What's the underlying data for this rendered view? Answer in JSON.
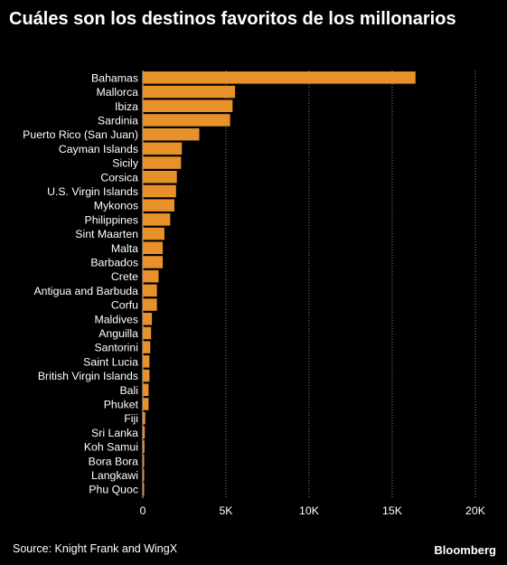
{
  "title": "Cuáles son los destinos favoritos de los millonarios",
  "source": "Source: Knight Frank and WingX",
  "logo": "Bloomberg",
  "colors": {
    "bar": "#E8912A",
    "background": "#000000",
    "grid": "#888888",
    "text": "#FFFFFF"
  },
  "chart_data": {
    "type": "bar",
    "orientation": "horizontal",
    "categories": [
      "Bahamas",
      "Mallorca",
      "Ibiza",
      "Sardinia",
      "Puerto Rico (San Juan)",
      "Cayman Islands",
      "Sicily",
      "Corsica",
      "U.S. Virgin Islands",
      "Mykonos",
      "Philippines",
      "Sint Maarten",
      "Malta",
      "Barbados",
      "Crete",
      "Antigua and Barbuda",
      "Corfu",
      "Maldives",
      "Anguilla",
      "Santorini",
      "Saint Lucia",
      "British Virgin Islands",
      "Bali",
      "Phuket",
      "Fiji",
      "Sri Lanka",
      "Koh Samui",
      "Bora Bora",
      "Langkawi",
      "Phu Quoc"
    ],
    "values": [
      16400,
      5550,
      5400,
      5250,
      3400,
      2350,
      2300,
      2050,
      2000,
      1900,
      1650,
      1300,
      1200,
      1200,
      950,
      850,
      850,
      550,
      500,
      450,
      400,
      400,
      350,
      350,
      150,
      120,
      100,
      80,
      70,
      50
    ],
    "xlim": [
      0,
      20000
    ],
    "xticks": [
      0,
      5000,
      10000,
      15000,
      20000
    ],
    "xtick_labels": [
      "0",
      "5K",
      "10K",
      "15K",
      "20K"
    ],
    "grid": true,
    "xlabel": "",
    "ylabel": ""
  }
}
